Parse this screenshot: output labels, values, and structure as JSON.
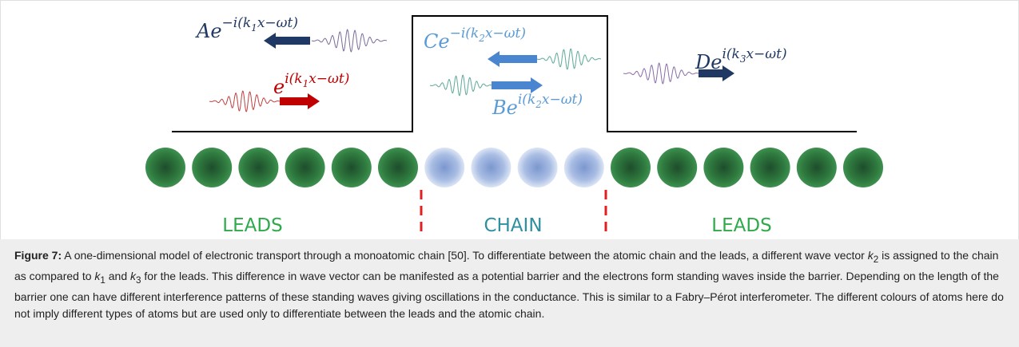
{
  "diagram": {
    "equations": {
      "A": {
        "coef": "Ae",
        "exp": "−i(k",
        "sub": "1",
        "rest": "x−ωt)",
        "color": "#1F3864"
      },
      "incident": {
        "coef": "e",
        "exp": "i(k",
        "sub": "1",
        "rest": "x−ωt)",
        "color": "#C00000"
      },
      "C": {
        "coef": "Ce",
        "exp": "−i(k",
        "sub": "2",
        "rest": "x−ωt)",
        "color": "#5B9BD5"
      },
      "B": {
        "coef": "Be",
        "exp": "i(k",
        "sub": "2",
        "rest": "x−ωt)",
        "color": "#5B9BD5"
      },
      "D": {
        "coef": "De",
        "exp": "i(k",
        "sub": "3",
        "rest": "x−ωt)",
        "color": "#1F3864"
      }
    },
    "regions": {
      "left": {
        "label": "LEADS",
        "color": "#2EAA4A"
      },
      "middle": {
        "label": "CHAIN",
        "color": "#2E8FA0"
      },
      "right": {
        "label": "LEADS",
        "color": "#2EAA4A"
      }
    },
    "atoms": {
      "lead_count_left": 6,
      "chain_count": 4,
      "lead_count_right": 6,
      "lead_color": "#2E6B3A",
      "chain_color": "#8FA8D8"
    },
    "colors": {
      "barrier": "#000000",
      "divider": "#E02020",
      "arrow_red": "#C00000",
      "arrow_dark": "#1F3864",
      "arrow_blue": "#4A86D0"
    }
  },
  "caption": {
    "label": "Figure 7:",
    "t1": " A one-dimensional model of electronic transport through a monoatomic chain [50]. To differentiate between the atomic chain and the leads, a different wave vector ",
    "k": "k",
    "k2": "2",
    "t2": " is assigned to the chain as compared to ",
    "k1": "1",
    "t3": " and ",
    "k3": "3",
    "t4": " for the leads. This difference in wave vector can be manifested as a potential barrier and the electrons form standing waves inside the barrier. Depending on the length of the barrier one can have different interference patterns of these standing waves giving oscillations in the conductance. This is similar to a Fabry–Pérot interferometer. The different colours of atoms here do not imply different types of atoms but are used only to differentiate between the leads and the atomic chain."
  }
}
